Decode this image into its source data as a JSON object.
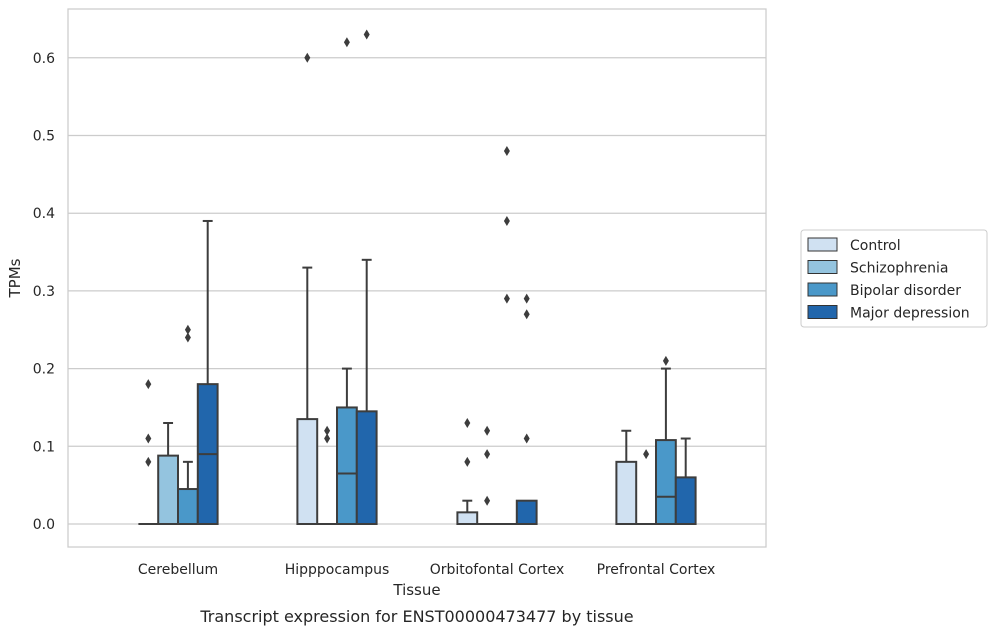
{
  "caption": "Transcript expression for ENST00000473477 by tissue",
  "chart_data": {
    "type": "box",
    "xlabel": "Tissue",
    "ylabel": "TPMs",
    "ylim": [
      -0.03,
      0.665
    ],
    "yticks": [
      "0.0",
      "0.1",
      "0.2",
      "0.3",
      "0.4",
      "0.5",
      "0.6"
    ],
    "ytick_values": [
      0,
      0.1,
      0.2,
      0.3,
      0.4,
      0.5,
      0.6
    ],
    "grid": "horizontal",
    "legend_position": "right",
    "categories": [
      "Cerebellum",
      "Hipppocampus",
      "Orbitofontal Cortex",
      "Prefrontal Cortex"
    ],
    "series": [
      {
        "name": "Control",
        "color": "#d0e1f2",
        "boxes": [
          {
            "q1": 0,
            "median": 0,
            "q3": 0,
            "whislo": 0,
            "whishi": 0,
            "fliers": [
              0.08,
              0.11,
              0.18
            ]
          },
          {
            "q1": 0,
            "median": 0,
            "q3": 0.135,
            "whislo": 0,
            "whishi": 0.33,
            "fliers": [
              0.6
            ]
          },
          {
            "q1": 0,
            "median": 0,
            "q3": 0.015,
            "whislo": 0,
            "whishi": 0.03,
            "fliers": [
              0.08,
              0.13
            ]
          },
          {
            "q1": 0,
            "median": 0,
            "q3": 0.08,
            "whislo": 0,
            "whishi": 0.12,
            "fliers": []
          }
        ]
      },
      {
        "name": "Schizophrenia",
        "color": "#94c4df",
        "boxes": [
          {
            "q1": 0,
            "median": 0,
            "q3": 0.088,
            "whislo": 0,
            "whishi": 0.13,
            "fliers": []
          },
          {
            "q1": 0,
            "median": 0,
            "q3": 0,
            "whislo": 0,
            "whishi": 0,
            "fliers": [
              0.11,
              0.12
            ]
          },
          {
            "q1": 0,
            "median": 0,
            "q3": 0,
            "whislo": 0,
            "whishi": 0,
            "fliers": [
              0.03,
              0.09,
              0.12
            ]
          },
          {
            "q1": 0,
            "median": 0,
            "q3": 0,
            "whislo": 0,
            "whishi": 0,
            "fliers": [
              0.09
            ]
          }
        ]
      },
      {
        "name": "Bipolar disorder",
        "color": "#4a98c9",
        "boxes": [
          {
            "q1": 0,
            "median": 0,
            "q3": 0.045,
            "whislo": 0,
            "whishi": 0.08,
            "fliers": [
              0.24,
              0.25
            ]
          },
          {
            "q1": 0,
            "median": 0.065,
            "q3": 0.15,
            "whislo": 0,
            "whishi": 0.2,
            "fliers": [
              0.62
            ]
          },
          {
            "q1": 0,
            "median": 0,
            "q3": 0,
            "whislo": 0,
            "whishi": 0,
            "fliers": [
              0.29,
              0.39,
              0.48
            ]
          },
          {
            "q1": 0,
            "median": 0.035,
            "q3": 0.108,
            "whislo": 0,
            "whishi": 0.2,
            "fliers": [
              0.21
            ]
          }
        ]
      },
      {
        "name": "Major depression",
        "color": "#2166ac",
        "boxes": [
          {
            "q1": 0,
            "median": 0.09,
            "q3": 0.18,
            "whislo": 0,
            "whishi": 0.39,
            "fliers": []
          },
          {
            "q1": 0,
            "median": 0,
            "q3": 0.145,
            "whislo": 0,
            "whishi": 0.34,
            "fliers": [
              0.63
            ]
          },
          {
            "q1": 0,
            "median": 0,
            "q3": 0.03,
            "whislo": 0,
            "whishi": 0.03,
            "fliers": [
              0.11,
              0.27,
              0.29
            ]
          },
          {
            "q1": 0,
            "median": 0,
            "q3": 0.06,
            "whislo": 0,
            "whishi": 0.11,
            "fliers": []
          }
        ]
      }
    ]
  }
}
